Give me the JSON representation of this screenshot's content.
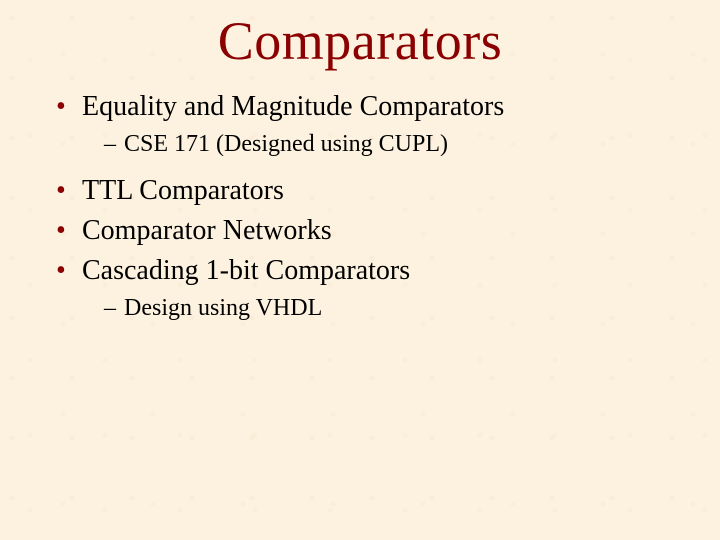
{
  "slide": {
    "title": "Comparators",
    "title_color": "#8b0000",
    "title_fontsize": 54,
    "background_color": "#fdf2e0",
    "text_color": "#000000",
    "bullets": [
      {
        "text": "Equality and Magnitude Comparators",
        "sub": [
          {
            "text": "CSE 171  (Designed using CUPL)"
          }
        ]
      },
      {
        "text": "TTL Comparators",
        "sub": []
      },
      {
        "text": "Comparator Networks",
        "sub": []
      },
      {
        "text": "Cascading 1-bit Comparators",
        "sub": [
          {
            "text": "Design using VHDL"
          }
        ]
      }
    ],
    "bullet_mark": "•",
    "sub_mark": "–",
    "bullet_fontsize": 28,
    "sub_fontsize": 24,
    "font_family": "Times New Roman"
  }
}
